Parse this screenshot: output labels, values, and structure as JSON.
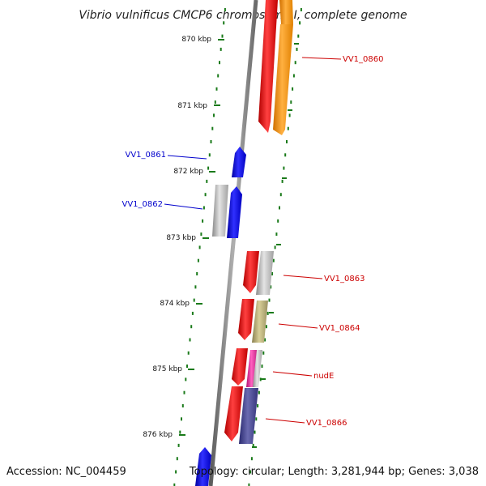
{
  "title": "Vibrio vulnificus CMCP6 chromosome I, complete genome",
  "accession": "Accession: NC_004459",
  "topology": "Topology: circular; Length: 3,281,944 bp; Genes: 3,038",
  "colors": {
    "tick": "#1a7a1a",
    "forward_label": "#0000cc",
    "reverse_label": "#cc0000",
    "backbone": "#888888"
  },
  "ticks": [
    {
      "label": "870 kbp"
    },
    {
      "label": "871 kbp"
    },
    {
      "label": "872 kbp"
    },
    {
      "label": "873 kbp"
    },
    {
      "label": "874 kbp"
    },
    {
      "label": "875 kbp"
    },
    {
      "label": "876 kbp"
    }
  ],
  "gene_labels": [
    {
      "text": "VV1_0860",
      "strand": "reverse"
    },
    {
      "text": "VV1_0861",
      "strand": "forward"
    },
    {
      "text": "VV1_0862",
      "strand": "forward"
    },
    {
      "text": "VV1_0863",
      "strand": "reverse"
    },
    {
      "text": "VV1_0864",
      "strand": "reverse"
    },
    {
      "text": "nudE",
      "strand": "reverse"
    },
    {
      "text": "VV1_0866",
      "strand": "reverse"
    }
  ]
}
